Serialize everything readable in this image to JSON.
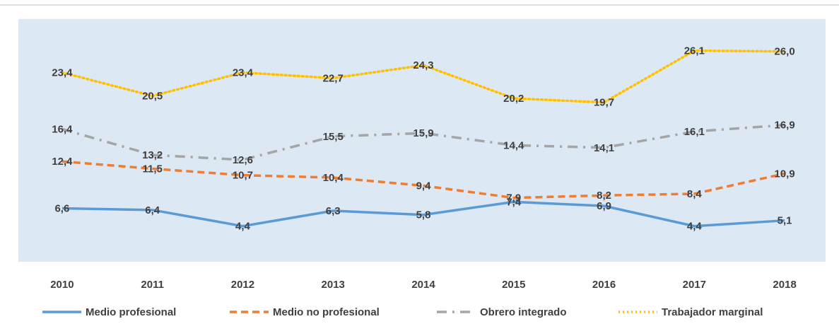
{
  "chart_data": {
    "type": "line",
    "categories": [
      "2010",
      "2011",
      "2012",
      "2013",
      "2014",
      "2015",
      "2016",
      "2017",
      "2018"
    ],
    "ylim": [
      0,
      30
    ],
    "series": [
      {
        "name": "Medio profesional",
        "color": "#5b9bd5",
        "line_style": "solid",
        "values": [
          6.6,
          6.4,
          4.4,
          6.3,
          5.8,
          7.4,
          6.9,
          4.4,
          5.1
        ],
        "value_labels": [
          "6,6",
          "6,4",
          "4,4",
          "6,3",
          "5,8",
          "7,4",
          "6,9",
          "4,4",
          "5,1"
        ]
      },
      {
        "name": "Medio no profesional",
        "color": "#ed7d31",
        "line_style": "dash",
        "values": [
          12.4,
          11.5,
          10.7,
          10.4,
          9.4,
          7.9,
          8.2,
          8.4,
          10.9
        ],
        "value_labels": [
          "12,4",
          "11,5",
          "10,7",
          "10,4",
          "9,4",
          "7,9",
          "8,2",
          "8,4",
          "10,9"
        ]
      },
      {
        "name": "Obrero integrado",
        "color": "#a5a5a5",
        "line_style": "dashdot",
        "values": [
          16.4,
          13.2,
          12.6,
          15.5,
          15.9,
          14.4,
          14.1,
          16.1,
          16.9
        ],
        "value_labels": [
          "16,4",
          "13,2",
          "12,6",
          "15,5",
          "15,9",
          "14,4",
          "14,1",
          "16,1",
          "16,9"
        ]
      },
      {
        "name": "Trabajador marginal",
        "color": "#ffc000",
        "line_style": "dot",
        "values": [
          23.4,
          20.5,
          23.4,
          22.7,
          24.3,
          20.2,
          19.7,
          26.1,
          26.0
        ],
        "value_labels": [
          "23,4",
          "20,5",
          "23,4",
          "22,7",
          "24,3",
          "20,2",
          "19,7",
          "26,1",
          "26,0"
        ]
      }
    ]
  }
}
